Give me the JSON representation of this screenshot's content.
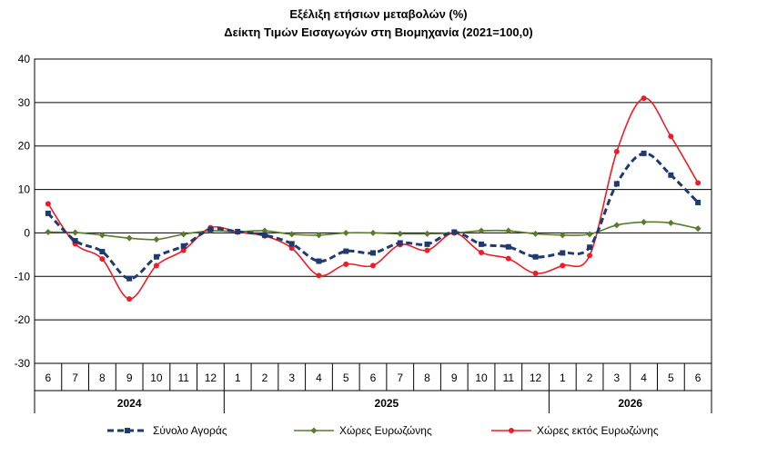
{
  "title": "Εξέλιξη ετήσιων μεταβολών (%)",
  "subtitle": "Δείκτη Τιμών Εισαγωγών στη Βιομηχανία (2021=100,0)",
  "chart_data": {
    "type": "line",
    "title": "Εξέλιξη ετήσιων μεταβολών (%)",
    "subtitle": "Δείκτη Τιμών Εισαγωγών στη Βιομηχανία (2021=100,0)",
    "categories": [
      "6",
      "7",
      "8",
      "9",
      "10",
      "11",
      "12",
      "1",
      "2",
      "3",
      "4",
      "5",
      "6",
      "7",
      "8",
      "9",
      "10",
      "11",
      "12",
      "1",
      "2",
      "3",
      "4",
      "5",
      "6"
    ],
    "years": [
      {
        "label": "2024",
        "start": 0,
        "end": 6
      },
      {
        "label": "2025",
        "start": 7,
        "end": 18
      },
      {
        "label": "2026",
        "start": 19,
        "end": 24
      }
    ],
    "ylim": [
      -30,
      40
    ],
    "yticks": [
      -30,
      -20,
      -10,
      0,
      10,
      20,
      30,
      40
    ],
    "grid": true,
    "legend_position": "bottom",
    "series": [
      {
        "name": "Σύνολο Αγοράς",
        "color": "#1f3a6e",
        "style": "dashed",
        "marker": "square",
        "values": [
          4.5,
          -1.8,
          -4.3,
          -10.5,
          -5.5,
          -3.0,
          0.8,
          0.3,
          -0.5,
          -2.5,
          -6.5,
          -4.2,
          -4.6,
          -2.3,
          -2.6,
          0.2,
          -2.6,
          -3.2,
          -5.5,
          -4.6,
          -3.3,
          11.3,
          18.3,
          13.3,
          7.0
        ]
      },
      {
        "name": "Χώρες Ευρωζώνης",
        "color": "#5a7a2e",
        "style": "solid",
        "marker": "diamond",
        "values": [
          0.2,
          0.1,
          -0.5,
          -1.2,
          -1.5,
          -0.3,
          0.5,
          0.3,
          0.5,
          -0.3,
          -0.5,
          0.0,
          0.0,
          -0.2,
          -0.2,
          0.0,
          0.5,
          0.5,
          -0.2,
          -0.5,
          -0.3,
          1.8,
          2.5,
          2.3,
          1.0
        ]
      },
      {
        "name": "Χώρες εκτός Ευρωζώνης",
        "color": "#ee1c25",
        "style": "solid",
        "marker": "circle",
        "values": [
          6.7,
          -2.5,
          -6.0,
          -15.2,
          -7.5,
          -4.0,
          1.2,
          0.2,
          -0.7,
          -3.5,
          -9.8,
          -7.2,
          -7.5,
          -2.7,
          -4.0,
          0.0,
          -4.5,
          -5.9,
          -9.3,
          -7.5,
          -5.2,
          18.7,
          31.0,
          22.2,
          11.5
        ]
      }
    ]
  }
}
